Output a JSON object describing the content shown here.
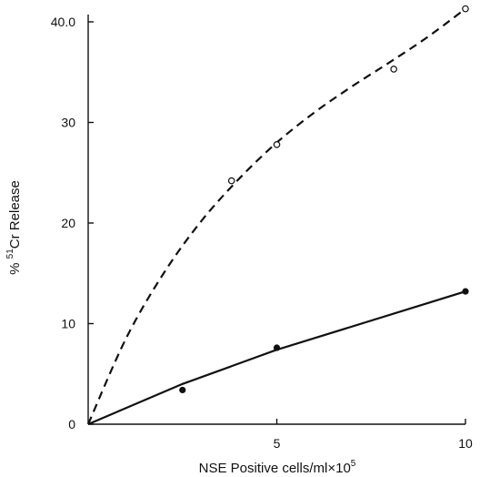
{
  "chart_data": {
    "type": "line",
    "title": "",
    "xlabel": "NSE Positive cells/ml×10",
    "xlabel_exponent": "5",
    "ylabel": "% ",
    "ylabel_superscript": "51",
    "ylabel_rest": "Cr Release",
    "xlim": [
      0,
      10
    ],
    "ylim": [
      0,
      40
    ],
    "x_ticks": [
      {
        "value": 5,
        "label": "5"
      },
      {
        "value": 10,
        "label": "10"
      }
    ],
    "y_ticks": [
      {
        "value": 0,
        "label": "0"
      },
      {
        "value": 10,
        "label": "10"
      },
      {
        "value": 20,
        "label": "20"
      },
      {
        "value": 30,
        "label": "30"
      },
      {
        "value": 40,
        "label": "40.0"
      }
    ],
    "grid": false,
    "series": [
      {
        "style": "dashed",
        "marker": "open-circle",
        "points": [
          {
            "x": 0,
            "y": 0
          },
          {
            "x": 3.8,
            "y": 24.2
          },
          {
            "x": 5,
            "y": 27.8
          },
          {
            "x": 8.1,
            "y": 35.3
          },
          {
            "x": 10,
            "y": 41.3
          }
        ],
        "curve": [
          {
            "x": 0,
            "y": 0
          },
          {
            "x": 1,
            "y": 8.5
          },
          {
            "x": 2,
            "y": 15.0
          },
          {
            "x": 3,
            "y": 20.2
          },
          {
            "x": 4,
            "y": 24.4
          },
          {
            "x": 5,
            "y": 28.0
          },
          {
            "x": 6,
            "y": 31.0
          },
          {
            "x": 7,
            "y": 33.6
          },
          {
            "x": 8,
            "y": 36.0
          },
          {
            "x": 9,
            "y": 38.5
          },
          {
            "x": 10,
            "y": 41.3
          }
        ]
      },
      {
        "style": "solid",
        "marker": "filled-circle",
        "points": [
          {
            "x": 0,
            "y": 0
          },
          {
            "x": 2.5,
            "y": 3.4
          },
          {
            "x": 5,
            "y": 7.6
          },
          {
            "x": 10,
            "y": 13.2
          }
        ],
        "curve": [
          {
            "x": 0,
            "y": 0
          },
          {
            "x": 2.5,
            "y": 4.0
          },
          {
            "x": 5,
            "y": 7.4
          },
          {
            "x": 10,
            "y": 13.2
          }
        ]
      }
    ]
  }
}
